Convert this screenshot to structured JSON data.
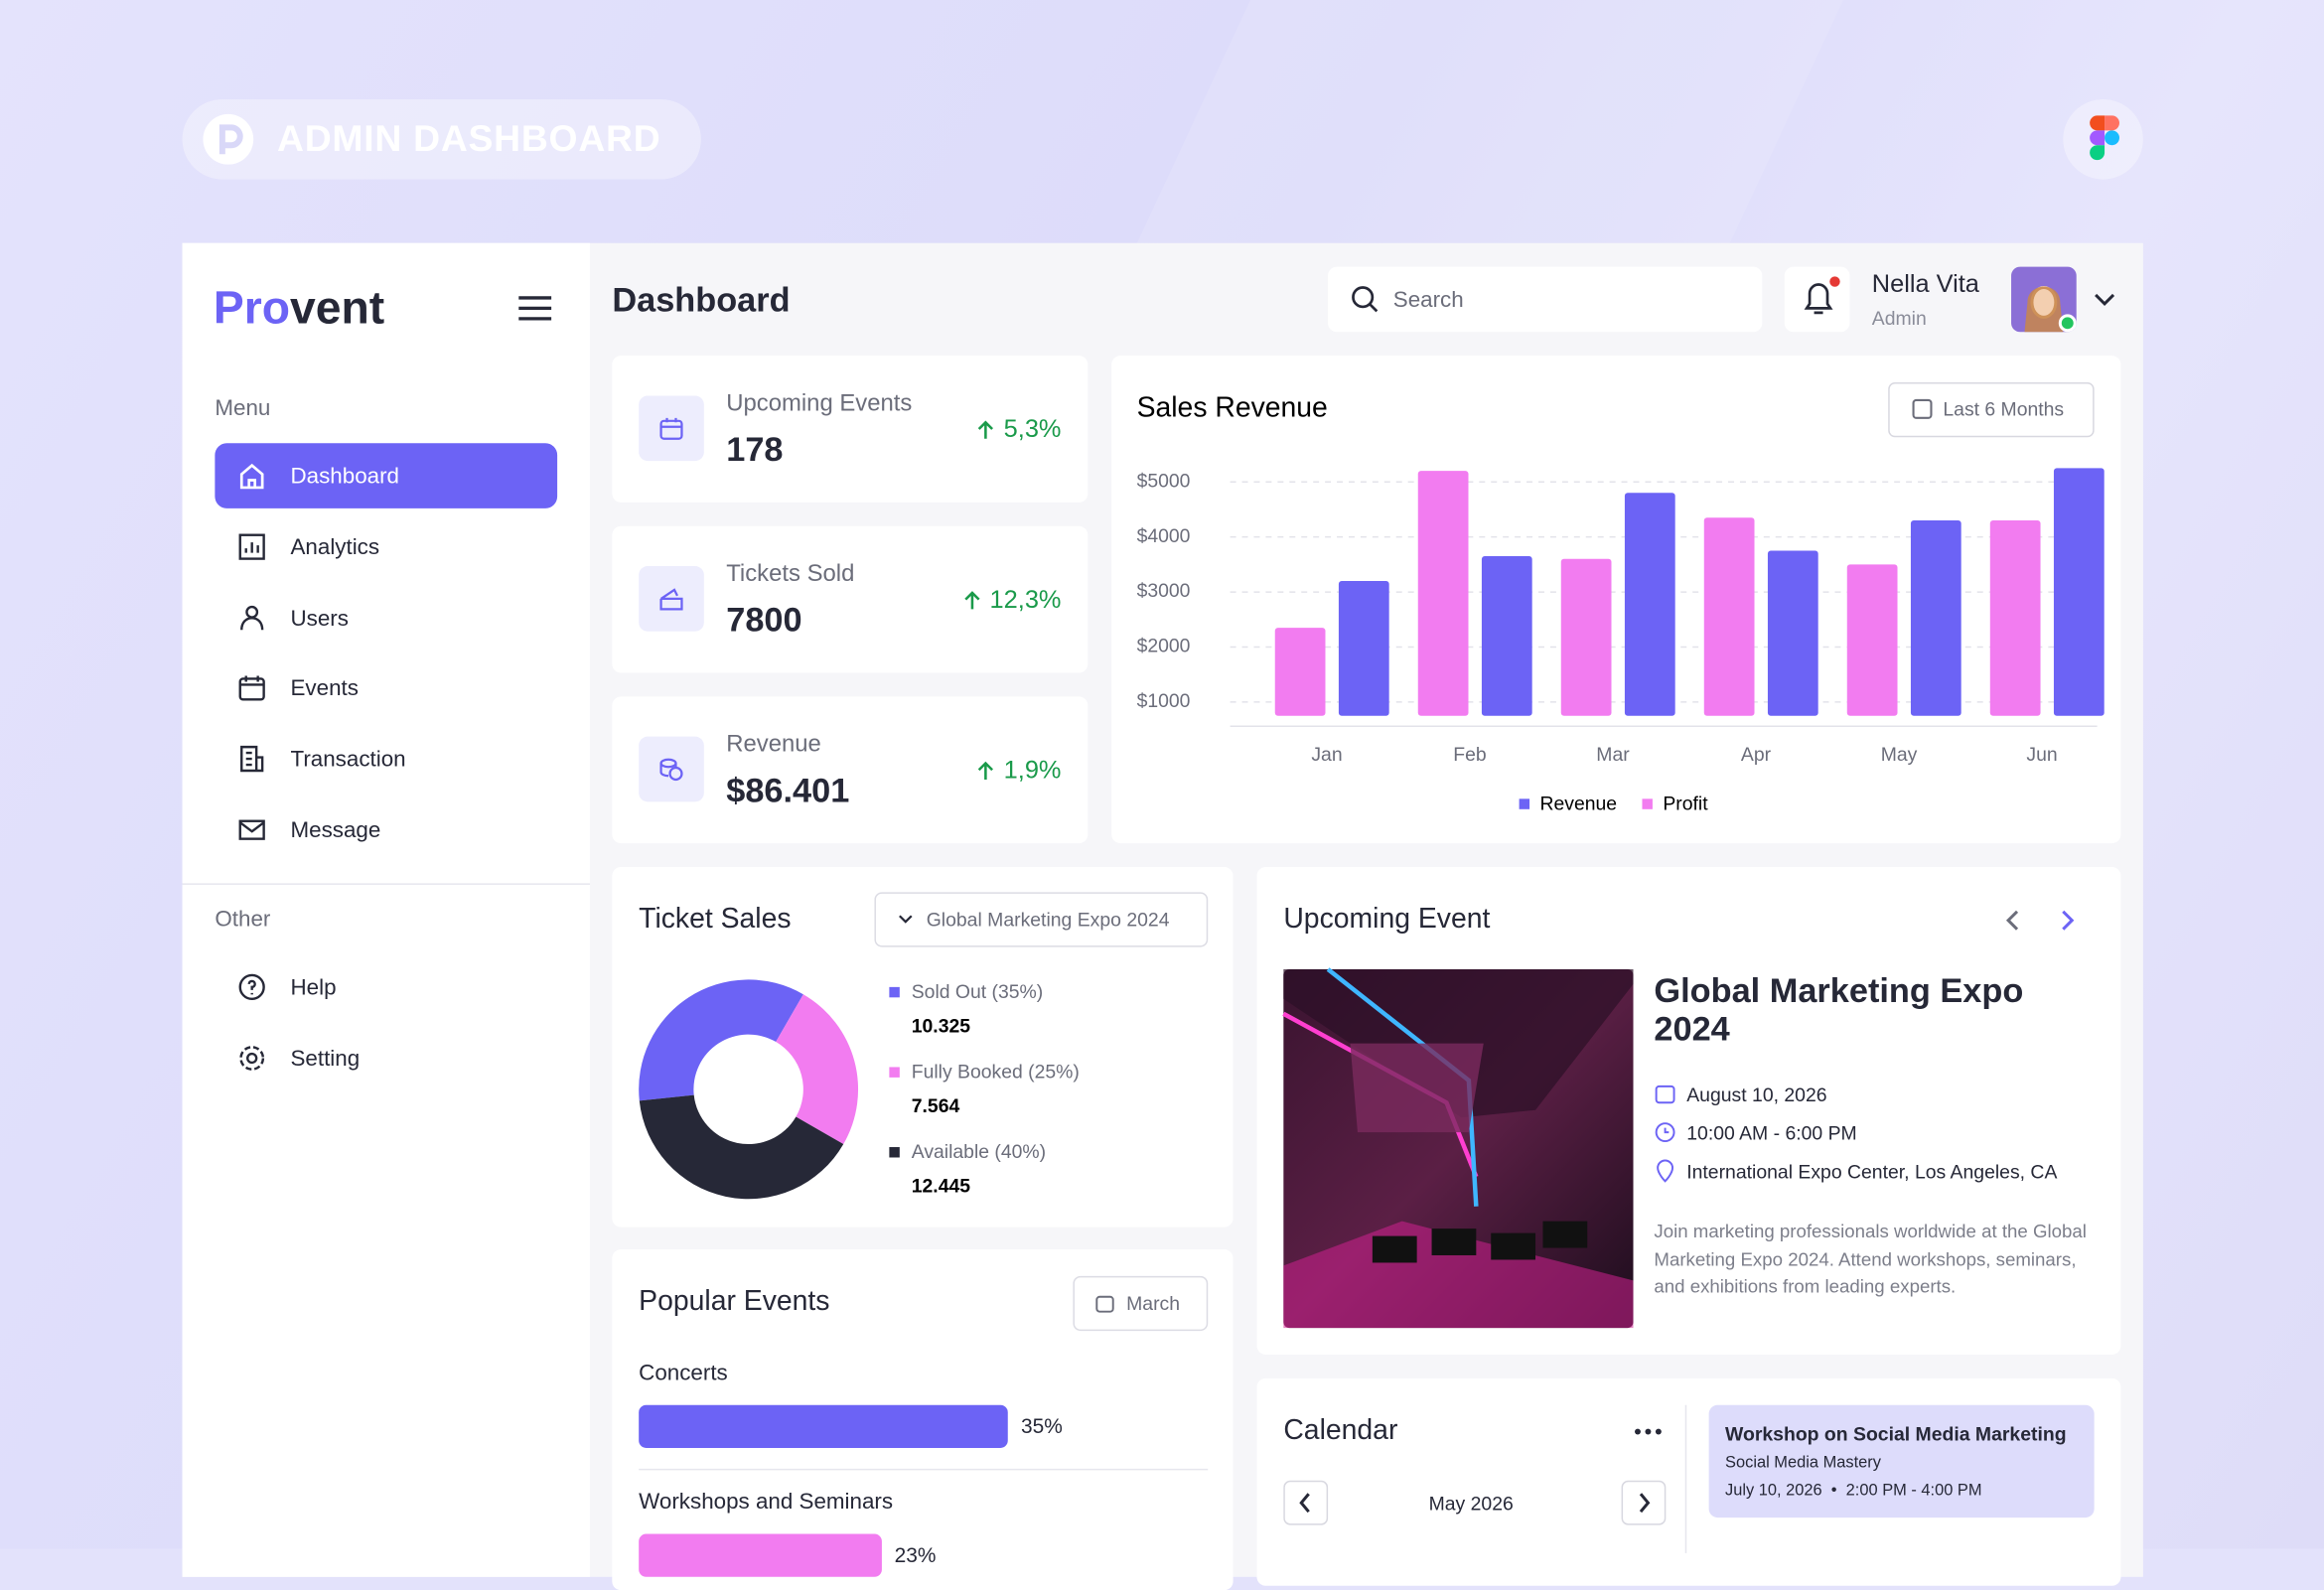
{
  "header": {
    "badge": "ADMIN DASHBOARD"
  },
  "sidebar": {
    "brand_start": "Pro",
    "brand_end": "vent",
    "menu_title": "Menu",
    "menu": [
      "Dashboard",
      "Analytics",
      "Users",
      "Events",
      "Transaction",
      "Message"
    ],
    "other_title": "Other",
    "other": [
      "Help",
      "Setting"
    ]
  },
  "topbar": {
    "title": "Dashboard",
    "search_placeholder": "Search",
    "user_name": "Nella Vita",
    "user_role": "Admin"
  },
  "stats": [
    {
      "label": "Upcoming Events",
      "value": "178",
      "change": "5,3%"
    },
    {
      "label": "Tickets Sold",
      "value": "7800",
      "change": "12,3%"
    },
    {
      "label": "Revenue",
      "value": "$86.401",
      "change": "1,9%"
    }
  ],
  "sales_revenue": {
    "type": "bar",
    "title": "Sales Revenue",
    "filter": "Last 6 Months",
    "categories": [
      "Jan",
      "Feb",
      "Mar",
      "Apr",
      "May",
      "Jun"
    ],
    "series": [
      {
        "name": "Revenue",
        "color": "#6c63f5",
        "values": [
          3200,
          3650,
          4800,
          3750,
          4300,
          5250
        ]
      },
      {
        "name": "Profit",
        "color": "#f27cf0",
        "values": [
          2350,
          5200,
          3600,
          4350,
          3500,
          4300
        ]
      }
    ],
    "ylim": [
      750,
      5300
    ],
    "yticks": [
      {
        "value": 1000,
        "label": "$1000"
      },
      {
        "value": 2000,
        "label": "$2000"
      },
      {
        "value": 3000,
        "label": "$3000"
      },
      {
        "value": 4000,
        "label": "$4000"
      },
      {
        "value": 5000,
        "label": "$5000"
      }
    ],
    "grid": true
  },
  "ticket_sales": {
    "type": "pie",
    "title": "Ticket Sales",
    "filter": "Global Marketing Expo 2024",
    "categories": [
      "Sold Out (35%)",
      "Fully Booked (25%)",
      "Available (40%)"
    ],
    "values": [
      35,
      25,
      40
    ],
    "colors": [
      "#6c63f5",
      "#f27cf0",
      "#262837"
    ],
    "counts": [
      "10.325",
      "7.564",
      "12.445"
    ]
  },
  "popular_events": {
    "type": "bar",
    "title": "Popular Events",
    "filter": "March",
    "categories": [
      "Concerts",
      "Workshops and Seminars"
    ],
    "values": [
      35,
      23
    ],
    "value_labels": [
      "35%",
      "23%"
    ],
    "colors": [
      "#6c63f5",
      "#f27cf0"
    ],
    "xlim": [
      0,
      54
    ]
  },
  "upcoming_event": {
    "title": "Upcoming Event",
    "name": "Global Marketing Expo 2024",
    "date": "August 10, 2026",
    "time": "10:00 AM - 6:00 PM",
    "location": "International Expo Center, Los Angeles, CA",
    "description": "Join marketing professionals worldwide at the Global Marketing Expo 2024. Attend workshops, seminars, and exhibitions from leading experts."
  },
  "calendar": {
    "title": "Calendar",
    "month": "May 2026",
    "event": {
      "title": "Workshop on Social Media Marketing",
      "subtitle": "Social Media Mastery",
      "date": "July 10, 2026",
      "time": "2:00 PM - 4:00 PM"
    }
  }
}
